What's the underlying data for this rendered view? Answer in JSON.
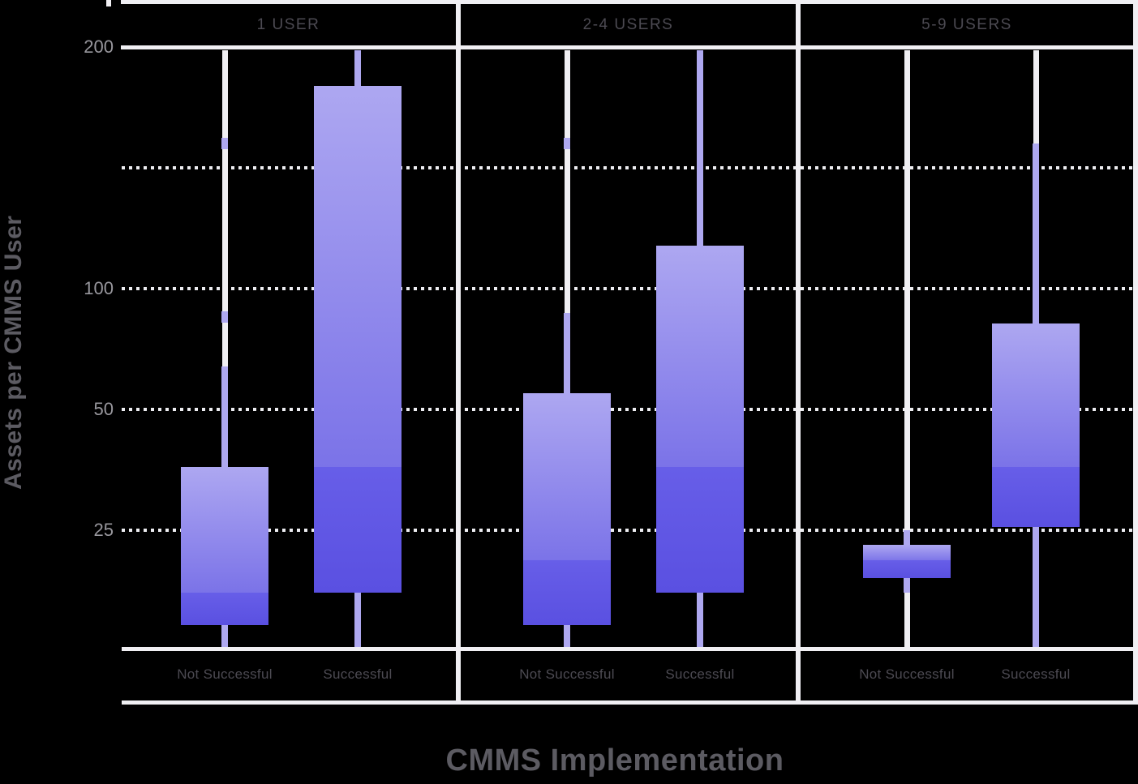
{
  "colors": {
    "background": "#000000",
    "panel_line_white": "#f0eff3",
    "dotted_gridline": "#ededf1",
    "whisker_purple": "#aea8f0",
    "box_gradient_top": "#ada7f1",
    "box_gradient_mid": "#7b73e8",
    "box_dark_top": "#675ee8",
    "box_dark_bottom": "#5a50e1",
    "tick_label_gray": "#98979d",
    "heading_gray": "#4c4a52",
    "axis_title_gray": "#5c5b62"
  },
  "chart_data": {
    "type": "boxplot",
    "title": "",
    "xlabel": "CMMS Implementation",
    "ylabel": "Assets per CMMS User",
    "y_scale": "log2",
    "y_range": [
      12.5,
      400
    ],
    "y_ticks": [
      "200",
      "100",
      "50",
      "25"
    ],
    "grid": "dotted horizontal gridlines at 200, 100, 50, 25",
    "legend": "none",
    "categories": [
      "Not Successful",
      "Successful"
    ],
    "panels": [
      {
        "label": "1 USER",
        "boxes": [
          {
            "category": "Not Successful",
            "whisker_low": 12.8,
            "q1": 14.5,
            "median": 17.5,
            "q3": 36,
            "whisker_high": 64,
            "outliers": [
              85,
              230
            ]
          },
          {
            "category": "Successful",
            "whisker_low": 12.8,
            "q1": 17.5,
            "median": 36,
            "q3": 320,
            "whisker_high": 400,
            "outliers": []
          }
        ]
      },
      {
        "label": "2-4 USERS",
        "boxes": [
          {
            "category": "Not Successful",
            "whisker_low": 12.8,
            "q1": 14.5,
            "median": 21,
            "q3": 55,
            "whisker_high": 87,
            "outliers": [
              230
            ]
          },
          {
            "category": "Successful",
            "whisker_low": 12.8,
            "q1": 17.5,
            "median": 36,
            "q3": 128,
            "whisker_high": 400,
            "outliers": []
          }
        ]
      },
      {
        "label": "5-9 USERS",
        "boxes": [
          {
            "category": "Not Successful",
            "whisker_low": 17.5,
            "q1": 19,
            "median": 21,
            "q3": 23,
            "whisker_high": 25,
            "outliers": []
          },
          {
            "category": "Successful",
            "whisker_low": 12.8,
            "q1": 25.5,
            "median": 36,
            "q3": 82,
            "whisker_high": 230,
            "outliers": []
          }
        ]
      }
    ]
  }
}
